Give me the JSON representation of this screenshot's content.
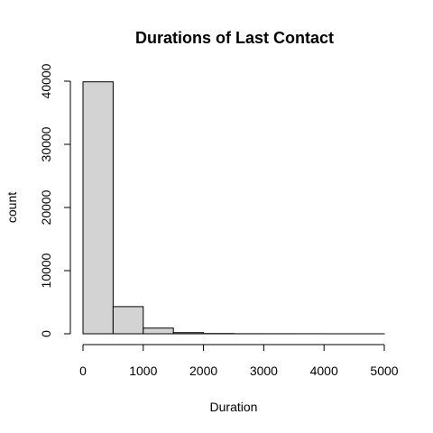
{
  "chart_data": {
    "type": "bar",
    "title": "Durations of Last Contact",
    "xlabel": "Duration",
    "ylabel": "count",
    "bin_edges": [
      0,
      500,
      1000,
      1500,
      2000,
      2500,
      3000,
      3500,
      4000,
      4500,
      5000
    ],
    "values": [
      39900,
      4300,
      900,
      180,
      40,
      10,
      5,
      3,
      2,
      1
    ],
    "xlim": [
      0,
      5000
    ],
    "ylim": [
      0,
      40000
    ],
    "x_ticks": [
      0,
      1000,
      2000,
      3000,
      4000,
      5000
    ],
    "y_ticks": [
      0,
      10000,
      20000,
      30000,
      40000
    ],
    "bar_color": "#d3d3d3",
    "grid": false,
    "legend": "none"
  }
}
